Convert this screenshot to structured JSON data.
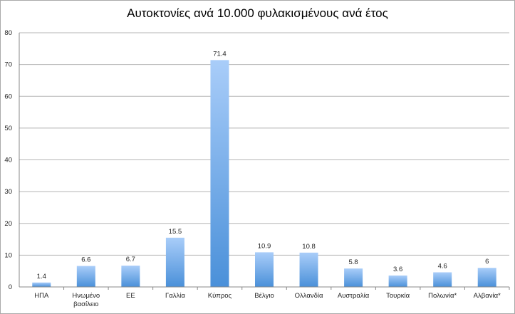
{
  "chart_data": {
    "type": "bar",
    "title": "Αυτοκτονίες ανά 10.000 φυλακισμένους ανά έτος",
    "categories": [
      "ΗΠΑ",
      "Ηνωμένο βασίλειο",
      "ΕΕ",
      "Γαλλία",
      "Κύπρος",
      "Βέλγιο",
      "Ολλανδία",
      "Αυστραλία",
      "Τουρκία",
      "Πολωνία*",
      "Αλβανία*"
    ],
    "values": [
      1.4,
      6.6,
      6.7,
      15.5,
      71.4,
      10.9,
      10.8,
      5.8,
      3.6,
      4.6,
      6
    ],
    "data_labels": [
      "1.4",
      "6.6",
      "6.7",
      "15.5",
      "71.4",
      "10.9",
      "10.8",
      "5.8",
      "3.6",
      "4.6",
      "6"
    ],
    "yticks": [
      0,
      10,
      20,
      30,
      40,
      50,
      60,
      70,
      80
    ],
    "ylim": [
      0,
      80
    ],
    "grid": true,
    "legend": "none",
    "colors": {
      "bar_top": "#a9cdf9",
      "bar_bottom": "#4a90d9",
      "grid": "#b5b5b5"
    }
  }
}
